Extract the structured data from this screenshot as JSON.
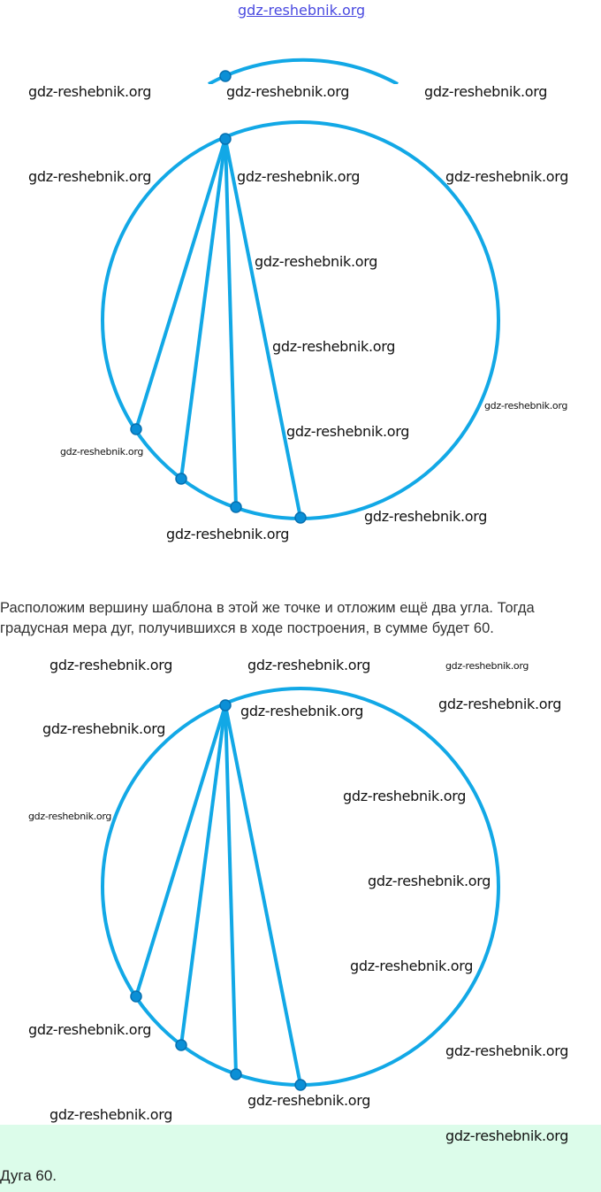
{
  "header_watermark": "gdz-reshebnik.org",
  "paragraph": "Расположим вершину шаблона в этой же точке и отложим ещё два угла. Тогда градусная мера дуг, получившихся в ходе построения, в сумме будет 60.",
  "answer": "Дуга 60.",
  "watermark": "gdz-reshebnik.org",
  "colors": {
    "circle": "#12a8e6",
    "point": "#0b8fd6",
    "answer_bg": "#dcfcea"
  }
}
